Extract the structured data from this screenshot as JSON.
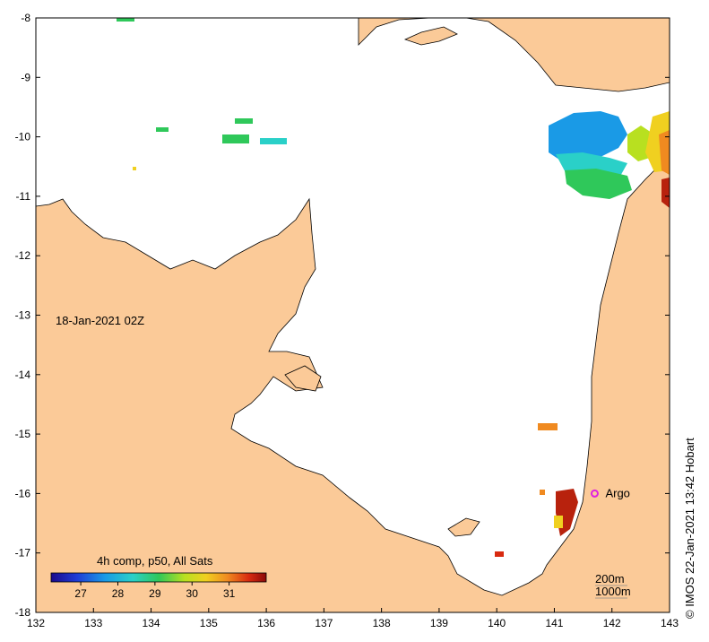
{
  "map": {
    "date_label": "18-Jan-2021 02Z",
    "lon_ticks": [
      "132",
      "133",
      "134",
      "135",
      "136",
      "137",
      "138",
      "139",
      "140",
      "141",
      "142",
      "143"
    ],
    "lat_ticks": [
      "-8",
      "-9",
      "-10",
      "-11",
      "-12",
      "-13",
      "-14",
      "-15",
      "-16",
      "-17",
      "-18"
    ],
    "marker": {
      "label": "Argo",
      "lon": 141.7,
      "lat": -16.0
    },
    "isobaths": {
      "label_200": "200m",
      "label_1000": "1000m"
    },
    "colorbar": {
      "title": "4h comp, p50, All Sats",
      "ticks": [
        "27",
        "28",
        "29",
        "30",
        "31"
      ],
      "range": [
        26.2,
        32.0
      ]
    },
    "credit": "© IMOS 22-Jan-2021 13:42 Hobart",
    "colors": {
      "land": "#fbca98",
      "ocean": "#ffffff",
      "marker": "#e020e0"
    }
  }
}
